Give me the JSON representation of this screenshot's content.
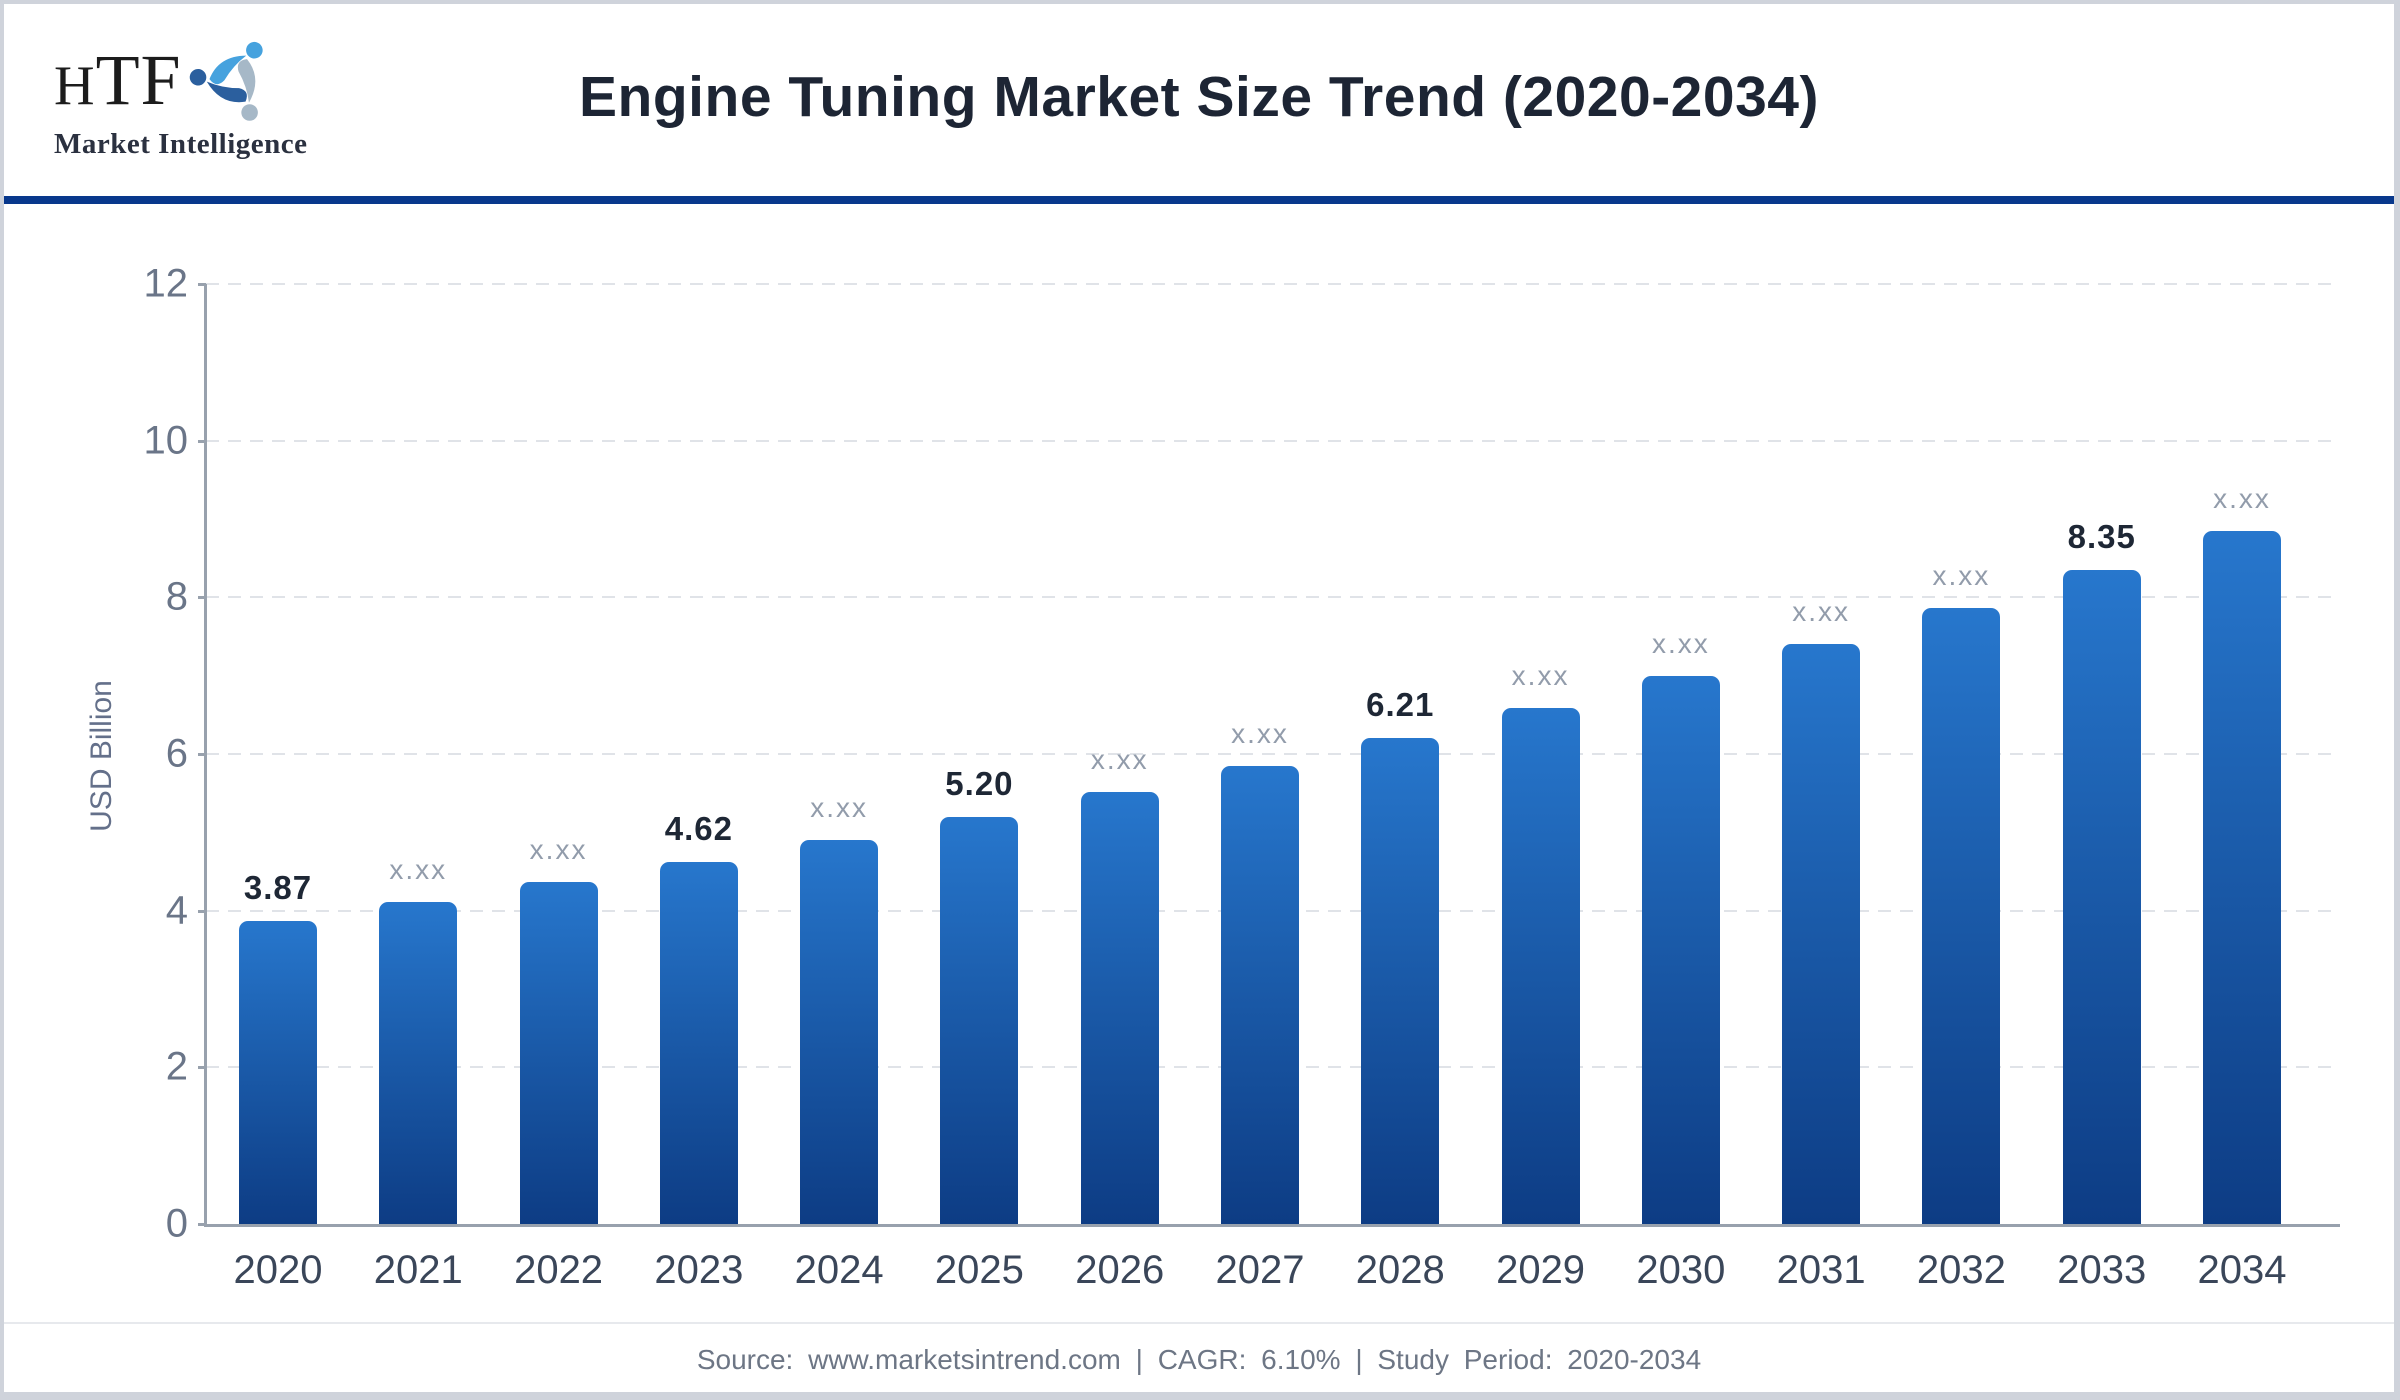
{
  "header": {
    "logo": {
      "acronym_first": "H",
      "acronym_rest": "TF",
      "subtitle": "Market Intelligence"
    },
    "title": "Engine Tuning Market Size Trend (2020-2034)"
  },
  "chart_data": {
    "type": "bar",
    "title": "Engine Tuning Market Size Trend (2020-2034)",
    "xlabel": "",
    "ylabel": "USD Billion",
    "ylim": [
      0,
      12
    ],
    "yticks": [
      0,
      2,
      4,
      6,
      8,
      10,
      12
    ],
    "grid": "horizontal-dashed",
    "legend_position": "none",
    "categories": [
      "2020",
      "2021",
      "2022",
      "2023",
      "2024",
      "2025",
      "2026",
      "2027",
      "2028",
      "2029",
      "2030",
      "2031",
      "2032",
      "2033",
      "2034"
    ],
    "values": [
      3.87,
      4.11,
      4.36,
      4.62,
      4.9,
      5.2,
      5.52,
      5.85,
      6.21,
      6.59,
      6.99,
      7.41,
      7.87,
      8.35,
      8.85
    ],
    "bar_labels": [
      "3.87",
      "x.xx",
      "x.xx",
      "4.62",
      "x.xx",
      "5.20",
      "x.xx",
      "x.xx",
      "6.21",
      "x.xx",
      "x.xx",
      "x.xx",
      "x.xx",
      "8.35",
      "x.xx"
    ],
    "colors": {
      "bar_gradient_top": "#2777cd",
      "bar_gradient_bottom": "#0d3c84",
      "value_label": "#1e2735",
      "masked_label": "#929cab",
      "gridline": "#e0e3e8",
      "axis": "#98a1ad",
      "divider": "#08388c"
    }
  },
  "footer": {
    "text": "Source: www.marketsintrend.com | CAGR: 6.10% | Study Period: 2020-2034"
  }
}
